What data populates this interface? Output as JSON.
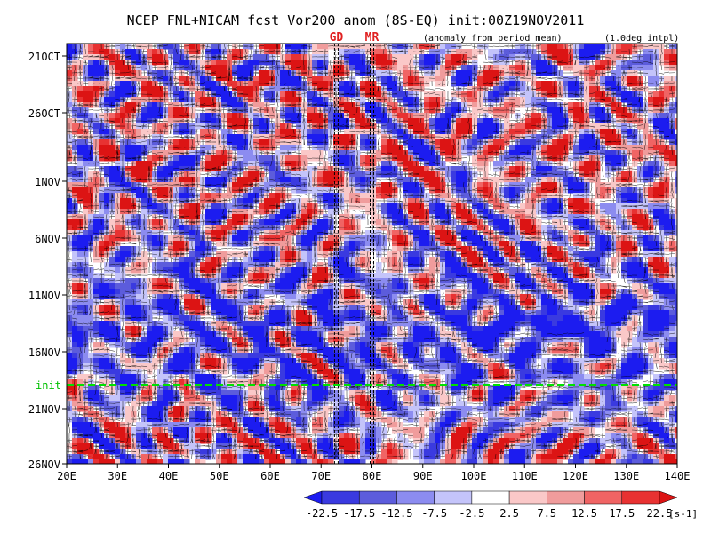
{
  "chart_data": {
    "type": "heatmap",
    "title": "NCEP_FNL+NICAM_fcst Vor200_anom (8S-EQ) init:00Z19NOV2011",
    "subtitle_left": "(anomaly from period mean)",
    "subtitle_right": "(1.0deg intpl)",
    "x": {
      "ticks": [
        "20E",
        "30E",
        "40E",
        "50E",
        "60E",
        "70E",
        "80E",
        "90E",
        "100E",
        "110E",
        "120E",
        "130E",
        "140E"
      ],
      "range": [
        20,
        140
      ]
    },
    "y": {
      "ticks": [
        "21OCT",
        "26OCT",
        "1NOV",
        "6NOV",
        "11NOV",
        "16NOV",
        "21NOV",
        "26NOV"
      ],
      "range_days_labels": [
        "21OCT",
        "26NOV"
      ]
    },
    "markers": [
      {
        "label": "GD",
        "lon": 73
      },
      {
        "label": "MR",
        "lon": 80
      }
    ],
    "init_line": {
      "label": "init",
      "date": "19NOV"
    },
    "colorbar": {
      "levels": [
        "-22.5",
        "-17.5",
        "-12.5",
        "-7.5",
        "-2.5",
        "2.5",
        "7.5",
        "12.5",
        "17.5",
        "22.5"
      ],
      "unit": "[s-1]",
      "colors": [
        "#1c1cf0",
        "#3a3ae0",
        "#5c5cdc",
        "#8c8cf0",
        "#c4c4fa",
        "#ffffff",
        "#fac8c8",
        "#f09c9c",
        "#f06464",
        "#e83232",
        "#dc1414"
      ]
    }
  }
}
